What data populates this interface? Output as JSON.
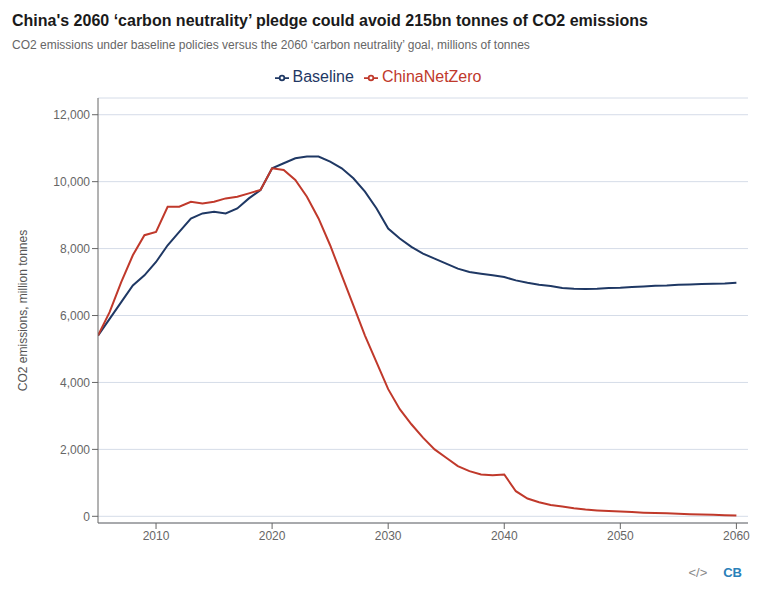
{
  "chart_data": {
    "type": "line",
    "title": "China's 2060 ‘carbon neutrality’ pledge could avoid 215bn tonnes of CO2 emissions",
    "subtitle": "CO2 emissions under baseline policies versus the 2060 ‘carbon neutrality’ goal, millions of tonnes",
    "y_label": "CO2 emissions, million tonnes",
    "annotations": [
      "</>",
      "CB"
    ],
    "x": [
      2005,
      2006,
      2007,
      2008,
      2009,
      2010,
      2011,
      2012,
      2013,
      2014,
      2015,
      2016,
      2017,
      2018,
      2019,
      2020,
      2021,
      2022,
      2023,
      2024,
      2025,
      2026,
      2027,
      2028,
      2029,
      2030,
      2031,
      2032,
      2033,
      2034,
      2035,
      2036,
      2037,
      2038,
      2039,
      2040,
      2041,
      2042,
      2043,
      2044,
      2045,
      2046,
      2047,
      2048,
      2049,
      2050,
      2051,
      2052,
      2053,
      2054,
      2055,
      2056,
      2057,
      2058,
      2059,
      2060
    ],
    "series": [
      {
        "name": "Baseline",
        "color": "#1f3864",
        "values": [
          5400,
          5900,
          6400,
          6900,
          7200,
          7600,
          8100,
          8500,
          8900,
          9050,
          9100,
          9050,
          9200,
          9500,
          9750,
          10400,
          10550,
          10700,
          10750,
          10750,
          10600,
          10400,
          10100,
          9700,
          9200,
          8600,
          8300,
          8050,
          7850,
          7700,
          7550,
          7400,
          7300,
          7250,
          7200,
          7150,
          7050,
          6980,
          6920,
          6880,
          6820,
          6800,
          6790,
          6800,
          6820,
          6830,
          6850,
          6870,
          6890,
          6900,
          6920,
          6930,
          6940,
          6950,
          6960,
          6980
        ]
      },
      {
        "name": "ChinaNetZero",
        "color": "#c0392b",
        "values": [
          5400,
          6100,
          7000,
          7800,
          8400,
          8500,
          9250,
          9250,
          9400,
          9350,
          9400,
          9500,
          9550,
          9650,
          9750,
          10400,
          10350,
          10050,
          9550,
          8900,
          8100,
          7200,
          6300,
          5400,
          4600,
          3800,
          3200,
          2750,
          2350,
          2000,
          1750,
          1500,
          1350,
          1250,
          1230,
          1250,
          750,
          530,
          420,
          340,
          290,
          240,
          200,
          175,
          155,
          140,
          125,
          110,
          100,
          88,
          78,
          65,
          55,
          45,
          35,
          25
        ]
      }
    ],
    "xlim": [
      2005,
      2061
    ],
    "xticks": [
      2010,
      2020,
      2030,
      2040,
      2050,
      2060
    ],
    "ylim": [
      -200,
      12500
    ],
    "yticks": [
      0,
      {
        "value": 2000,
        "label": "2,000"
      },
      {
        "value": 4000,
        "label": "4,000"
      },
      {
        "value": 6000,
        "label": "6,000"
      },
      {
        "value": 8000,
        "label": "8,000"
      },
      {
        "value": 10000,
        "label": "10,000"
      },
      {
        "value": 12000,
        "label": "12,000"
      }
    ],
    "grid": "y",
    "legend": "top"
  }
}
